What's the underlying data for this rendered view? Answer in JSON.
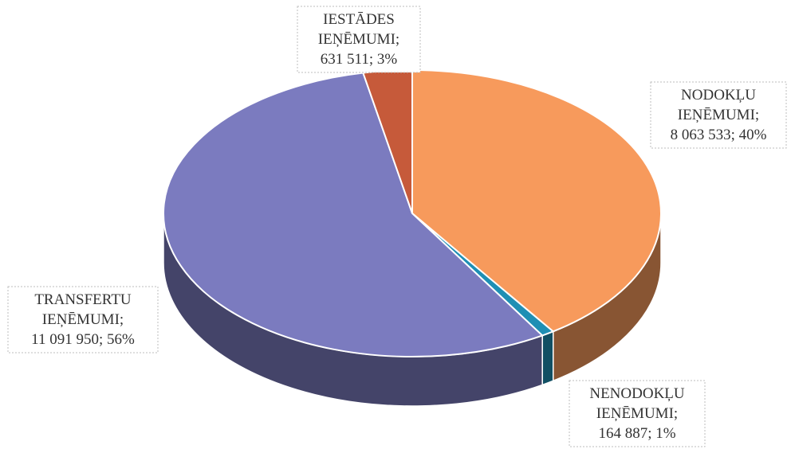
{
  "chart_data": {
    "type": "pie",
    "title": "",
    "three_d": true,
    "slices": [
      {
        "label_lines": [
          "NODOKĻU",
          "IEŅĒMUMI;",
          "8 063 533; 40%"
        ],
        "value": 8063533,
        "percent": 40,
        "color": "#f79a5c"
      },
      {
        "label_lines": [
          "NENODOKĻU",
          "IEŅĒMUMI;",
          "164 887; 1%"
        ],
        "value": 164887,
        "percent": 1,
        "color": "#1f8fb4"
      },
      {
        "label_lines": [
          "TRANSFERTU",
          "IEŅĒMUMI;",
          "11 091 950; 56%"
        ],
        "value": 11091950,
        "percent": 56,
        "color": "#7b7bbf"
      },
      {
        "label_lines": [
          "IESTĀDES",
          "IEŅĒMUMI;",
          "631 511; 3%"
        ],
        "value": 631511,
        "percent": 3,
        "color": "#c65a3a"
      }
    ],
    "legend": "none"
  }
}
